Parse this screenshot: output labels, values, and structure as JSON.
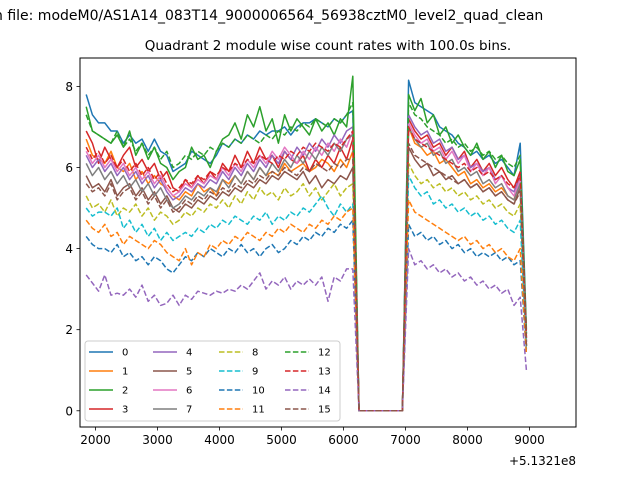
{
  "figure": {
    "suptitle": "n file: modeM0/AS1A14_083T14_9000006564_56938cztM0_level2_quad_clean"
  },
  "chart_data": {
    "type": "line",
    "title": "Quadrant 2 module wise count rates with 100.0s bins.",
    "xlabel": "",
    "ylabel": "",
    "x_offset_label": "+5.1321e8",
    "xlim": [
      1750,
      9750
    ],
    "ylim": [
      -0.4,
      8.7
    ],
    "xticks": [
      2000,
      3000,
      4000,
      5000,
      6000,
      7000,
      8000,
      9000
    ],
    "yticks": [
      0,
      2,
      4,
      6,
      8
    ],
    "grid": false,
    "legend_position": "lower-left",
    "legend_columns": 4,
    "x_start": 1850,
    "x_step": 100,
    "series": [
      {
        "name": "0",
        "color": "#1f77b4",
        "style": "solid",
        "values": [
          7.8,
          7.3,
          7.1,
          7.1,
          6.9,
          6.9,
          6.6,
          6.8,
          6.6,
          6.7,
          6.4,
          6.7,
          6.4,
          6.3,
          5.9,
          6.0,
          6.1,
          6.4,
          6.3,
          6.2,
          6.1,
          6.3,
          6.6,
          6.5,
          6.7,
          6.6,
          6.8,
          6.7,
          6.9,
          6.8,
          6.9,
          6.9,
          7.0,
          6.8,
          7.0,
          7.1,
          7.1,
          7.2,
          7.1,
          7.0,
          7.2,
          7.1,
          7.3,
          7.4,
          0,
          0,
          0,
          0,
          0,
          0,
          0,
          0,
          8.15,
          7.6,
          7.5,
          7.4,
          7.3,
          7.0,
          6.9,
          6.8,
          6.6,
          6.5,
          6.3,
          6.4,
          6.2,
          6.3,
          6.1,
          6.2,
          6.0,
          5.8,
          6.6,
          2.0
        ]
      },
      {
        "name": "1",
        "color": "#ff7f0e",
        "style": "solid",
        "values": [
          6.7,
          6.3,
          6.2,
          6.1,
          6.4,
          6.0,
          5.9,
          6.1,
          5.7,
          5.9,
          5.6,
          5.8,
          5.6,
          5.5,
          5.3,
          5.2,
          5.4,
          5.3,
          5.6,
          5.4,
          5.5,
          5.3,
          5.7,
          5.6,
          5.8,
          5.6,
          5.9,
          5.7,
          6.0,
          5.8,
          5.9,
          5.8,
          6.1,
          5.9,
          6.0,
          6.1,
          5.9,
          6.0,
          6.2,
          6.1,
          5.9,
          6.2,
          6.0,
          6.4,
          0,
          0,
          0,
          0,
          0,
          0,
          0,
          0,
          7.0,
          6.6,
          6.5,
          6.3,
          6.4,
          6.1,
          6.2,
          6.0,
          5.8,
          5.9,
          5.6,
          5.7,
          5.5,
          5.6,
          5.4,
          5.5,
          5.3,
          5.2,
          5.8,
          1.6
        ]
      },
      {
        "name": "2",
        "color": "#2ca02c",
        "style": "solid",
        "values": [
          7.5,
          6.9,
          6.8,
          6.7,
          6.6,
          6.8,
          6.5,
          6.9,
          6.3,
          6.6,
          6.2,
          6.5,
          6.1,
          6.0,
          5.7,
          5.9,
          6.0,
          6.5,
          6.2,
          6.3,
          6.0,
          6.4,
          6.7,
          6.8,
          7.1,
          6.7,
          7.3,
          7.0,
          7.5,
          6.9,
          7.2,
          6.6,
          7.3,
          6.9,
          7.2,
          7.0,
          6.8,
          7.2,
          6.9,
          7.1,
          6.8,
          7.2,
          7.0,
          8.25,
          0,
          0,
          0,
          0,
          0,
          0,
          0,
          0,
          7.8,
          7.4,
          7.7,
          7.1,
          7.3,
          6.8,
          7.0,
          6.6,
          6.8,
          6.5,
          6.3,
          6.6,
          6.2,
          6.4,
          6.0,
          6.3,
          5.9,
          5.8,
          6.2,
          1.9
        ]
      },
      {
        "name": "3",
        "color": "#d62728",
        "style": "solid",
        "values": [
          6.9,
          6.6,
          6.1,
          6.5,
          6.2,
          6.0,
          6.3,
          6.5,
          6.0,
          6.2,
          5.9,
          6.1,
          5.7,
          5.9,
          5.5,
          5.4,
          5.7,
          5.5,
          5.8,
          5.6,
          5.9,
          5.7,
          6.1,
          5.9,
          6.3,
          6.0,
          6.4,
          6.1,
          6.5,
          6.2,
          6.3,
          6.0,
          6.4,
          6.2,
          6.1,
          6.3,
          5.9,
          6.2,
          6.0,
          6.3,
          6.1,
          6.5,
          6.2,
          6.7,
          0,
          0,
          0,
          0,
          0,
          0,
          0,
          0,
          7.2,
          6.9,
          6.7,
          6.8,
          6.5,
          6.6,
          6.3,
          6.5,
          6.2,
          6.4,
          6.0,
          6.2,
          5.9,
          6.1,
          5.8,
          6.0,
          5.7,
          5.5,
          5.9,
          1.8
        ]
      },
      {
        "name": "4",
        "color": "#9467bd",
        "style": "solid",
        "values": [
          6.3,
          6.0,
          6.2,
          5.9,
          6.1,
          5.8,
          6.0,
          5.7,
          5.9,
          5.6,
          5.8,
          5.5,
          5.7,
          5.4,
          5.2,
          5.3,
          5.5,
          5.4,
          5.6,
          5.5,
          5.7,
          5.6,
          5.9,
          5.7,
          6.0,
          5.8,
          6.1,
          5.9,
          6.2,
          6.0,
          6.3,
          6.1,
          6.4,
          6.2,
          6.5,
          6.3,
          6.6,
          6.4,
          6.7,
          6.5,
          6.8,
          6.6,
          6.9,
          7.0,
          0,
          0,
          0,
          0,
          0,
          0,
          0,
          0,
          7.3,
          7.0,
          6.8,
          6.9,
          6.6,
          6.7,
          6.4,
          6.5,
          6.2,
          6.3,
          6.0,
          6.1,
          5.9,
          6.0,
          5.7,
          5.8,
          5.5,
          5.4,
          5.8,
          1.7
        ]
      },
      {
        "name": "5",
        "color": "#8c564b",
        "style": "solid",
        "values": [
          5.8,
          5.5,
          5.6,
          5.4,
          5.7,
          5.3,
          5.5,
          5.6,
          5.3,
          5.5,
          5.2,
          5.4,
          5.1,
          5.3,
          5.0,
          4.9,
          5.1,
          5.0,
          5.2,
          5.1,
          5.3,
          5.2,
          5.4,
          5.3,
          5.5,
          5.4,
          5.6,
          5.5,
          5.7,
          5.6,
          5.8,
          5.7,
          5.9,
          5.8,
          5.7,
          5.9,
          5.6,
          5.8,
          5.5,
          5.7,
          5.6,
          5.8,
          5.7,
          6.0,
          0,
          0,
          0,
          0,
          0,
          0,
          0,
          0,
          6.5,
          6.2,
          6.0,
          6.1,
          5.8,
          5.9,
          5.7,
          5.8,
          5.6,
          5.7,
          5.5,
          5.6,
          5.4,
          5.5,
          5.3,
          5.4,
          5.2,
          5.1,
          5.5,
          1.6
        ]
      },
      {
        "name": "6",
        "color": "#e377c2",
        "style": "solid",
        "values": [
          6.4,
          6.1,
          6.3,
          6.0,
          6.2,
          5.9,
          6.1,
          5.8,
          6.0,
          5.7,
          5.9,
          5.6,
          5.8,
          5.5,
          5.3,
          5.4,
          5.6,
          5.5,
          5.7,
          5.6,
          5.8,
          5.7,
          6.0,
          5.8,
          6.1,
          5.9,
          6.2,
          6.0,
          6.3,
          6.1,
          6.4,
          6.2,
          6.5,
          6.3,
          6.1,
          6.4,
          6.2,
          6.5,
          6.3,
          6.6,
          6.4,
          6.7,
          6.5,
          6.9,
          0,
          0,
          0,
          0,
          0,
          0,
          0,
          0,
          7.1,
          6.8,
          6.6,
          6.7,
          6.4,
          6.5,
          6.2,
          6.4,
          6.1,
          6.3,
          5.9,
          6.1,
          5.8,
          6.0,
          5.6,
          5.8,
          5.5,
          5.3,
          5.7,
          1.7
        ]
      },
      {
        "name": "7",
        "color": "#7f7f7f",
        "style": "solid",
        "values": [
          6.1,
          5.8,
          6.0,
          5.7,
          5.9,
          5.6,
          5.8,
          5.5,
          5.7,
          5.4,
          5.6,
          5.3,
          5.5,
          5.2,
          5.0,
          5.1,
          5.3,
          5.2,
          5.4,
          5.3,
          5.5,
          5.4,
          5.7,
          5.5,
          5.8,
          5.6,
          5.9,
          5.7,
          6.0,
          5.8,
          6.1,
          5.9,
          6.2,
          6.0,
          6.3,
          6.1,
          6.4,
          6.2,
          6.5,
          6.3,
          6.6,
          6.4,
          6.7,
          6.8,
          0,
          0,
          0,
          0,
          0,
          0,
          0,
          0,
          7.0,
          6.7,
          6.5,
          6.6,
          6.3,
          6.4,
          6.1,
          6.2,
          5.9,
          6.0,
          5.8,
          5.9,
          5.6,
          5.7,
          5.5,
          5.6,
          5.3,
          5.2,
          5.6,
          1.7
        ]
      },
      {
        "name": "8",
        "color": "#bcbd22",
        "style": "dashed",
        "values": [
          5.3,
          5.0,
          5.1,
          4.9,
          5.2,
          4.8,
          5.0,
          4.9,
          5.1,
          4.8,
          5.0,
          4.7,
          4.9,
          4.8,
          4.6,
          4.7,
          4.9,
          4.8,
          5.0,
          4.9,
          5.1,
          5.0,
          5.2,
          5.0,
          5.3,
          5.1,
          5.4,
          5.2,
          5.5,
          5.3,
          5.4,
          5.2,
          5.5,
          5.3,
          5.4,
          5.6,
          5.3,
          5.5,
          5.2,
          5.4,
          5.6,
          5.3,
          5.5,
          5.6,
          0,
          0,
          0,
          0,
          0,
          0,
          0,
          0,
          6.1,
          5.8,
          5.6,
          5.7,
          5.5,
          5.6,
          5.4,
          5.5,
          5.3,
          5.4,
          5.2,
          5.3,
          5.1,
          5.2,
          5.0,
          5.1,
          4.9,
          4.8,
          5.1,
          1.6
        ]
      },
      {
        "name": "9",
        "color": "#17becf",
        "style": "dashed",
        "values": [
          5.0,
          4.8,
          4.9,
          4.9,
          4.8,
          5.0,
          4.5,
          4.7,
          4.4,
          4.6,
          4.3,
          4.5,
          4.2,
          4.4,
          4.2,
          4.3,
          4.4,
          4.3,
          4.5,
          4.4,
          4.6,
          4.5,
          4.7,
          4.6,
          4.8,
          4.7,
          4.6,
          4.8,
          4.7,
          4.9,
          4.6,
          4.8,
          4.7,
          4.9,
          4.8,
          5.0,
          4.9,
          5.1,
          5.3,
          5.0,
          4.8,
          5.1,
          4.9,
          5.1,
          0,
          0,
          0,
          0,
          0,
          0,
          0,
          0,
          5.8,
          5.5,
          5.3,
          5.4,
          5.1,
          5.2,
          5.0,
          5.1,
          4.9,
          5.0,
          4.8,
          4.9,
          4.7,
          4.8,
          4.6,
          4.7,
          4.5,
          4.4,
          4.7,
          1.5
        ]
      },
      {
        "name": "10",
        "color": "#1f77b4",
        "style": "dashed",
        "values": [
          4.3,
          4.1,
          4.0,
          4.0,
          3.9,
          4.1,
          3.8,
          3.9,
          3.7,
          3.8,
          3.6,
          3.8,
          3.7,
          3.5,
          3.4,
          3.6,
          3.8,
          3.7,
          3.9,
          3.8,
          4.0,
          3.9,
          3.8,
          4.0,
          3.9,
          4.1,
          3.9,
          4.0,
          3.8,
          4.0,
          4.1,
          3.9,
          4.0,
          4.2,
          4.1,
          4.3,
          4.2,
          4.4,
          4.3,
          4.5,
          4.4,
          4.6,
          4.5,
          4.7,
          0,
          0,
          0,
          0,
          0,
          0,
          0,
          0,
          4.6,
          4.3,
          4.4,
          4.2,
          4.3,
          4.1,
          4.2,
          4.0,
          4.1,
          3.9,
          4.0,
          3.8,
          3.9,
          3.8,
          3.9,
          3.7,
          3.8,
          3.6,
          3.7,
          1.4
        ]
      },
      {
        "name": "11",
        "color": "#ff7f0e",
        "style": "dashed",
        "values": [
          4.7,
          4.5,
          4.4,
          4.6,
          4.3,
          4.4,
          4.1,
          4.3,
          4.2,
          4.1,
          4.0,
          4.2,
          4.1,
          3.9,
          3.8,
          3.7,
          4.0,
          3.6,
          3.9,
          3.8,
          4.1,
          4.0,
          4.2,
          4.1,
          4.3,
          4.2,
          4.4,
          4.3,
          4.2,
          4.4,
          4.3,
          4.5,
          4.4,
          4.6,
          4.5,
          4.4,
          4.6,
          4.5,
          4.7,
          4.6,
          4.8,
          4.7,
          4.9,
          5.0,
          0,
          0,
          0,
          0,
          0,
          0,
          0,
          0,
          5.2,
          4.9,
          4.8,
          4.7,
          4.6,
          4.5,
          4.4,
          4.3,
          4.2,
          4.3,
          4.1,
          4.2,
          4.0,
          4.1,
          3.9,
          4.0,
          3.8,
          3.7,
          4.0,
          1.4
        ]
      },
      {
        "name": "12",
        "color": "#2ca02c",
        "style": "dashed",
        "values": [
          7.3,
          6.9,
          6.8,
          6.7,
          6.6,
          6.9,
          6.5,
          6.7,
          6.4,
          6.6,
          6.3,
          6.5,
          6.2,
          6.4,
          6.0,
          6.1,
          6.3,
          6.2,
          6.4,
          6.3,
          6.5,
          6.4,
          6.6,
          6.5,
          6.7,
          6.6,
          6.8,
          6.7,
          6.6,
          6.8,
          6.7,
          6.9,
          6.8,
          7.0,
          6.9,
          7.1,
          7.0,
          7.2,
          7.1,
          7.0,
          7.2,
          7.1,
          7.3,
          7.6,
          0,
          0,
          0,
          0,
          0,
          0,
          0,
          0,
          7.6,
          7.3,
          7.2,
          7.0,
          6.9,
          6.8,
          6.6,
          6.7,
          6.5,
          6.6,
          6.4,
          6.5,
          6.3,
          6.4,
          6.2,
          6.3,
          6.1,
          6.0,
          6.3,
          1.9
        ]
      },
      {
        "name": "13",
        "color": "#d62728",
        "style": "dashed",
        "values": [
          6.5,
          6.2,
          6.4,
          6.1,
          6.3,
          6.0,
          6.2,
          5.9,
          6.1,
          5.8,
          6.0,
          5.7,
          5.9,
          5.6,
          5.4,
          5.5,
          5.7,
          5.6,
          5.8,
          5.7,
          5.9,
          5.8,
          6.0,
          5.9,
          6.1,
          6.0,
          6.2,
          6.1,
          6.3,
          6.2,
          6.1,
          6.3,
          6.2,
          6.4,
          6.3,
          6.5,
          6.4,
          6.6,
          6.5,
          6.4,
          6.6,
          6.5,
          6.7,
          6.9,
          0,
          0,
          0,
          0,
          0,
          0,
          0,
          0,
          7.0,
          6.7,
          6.6,
          6.5,
          6.4,
          6.3,
          6.2,
          6.1,
          6.0,
          6.1,
          5.9,
          6.0,
          5.8,
          5.9,
          5.7,
          5.8,
          5.6,
          5.5,
          5.8,
          1.8
        ]
      },
      {
        "name": "14",
        "color": "#9467bd",
        "style": "dashed",
        "values": [
          3.35,
          3.15,
          2.95,
          3.35,
          2.85,
          2.9,
          2.85,
          3.0,
          2.8,
          3.1,
          2.7,
          2.85,
          2.6,
          2.65,
          2.85,
          2.6,
          2.85,
          2.75,
          2.95,
          2.9,
          2.85,
          2.95,
          2.9,
          3.0,
          2.95,
          3.1,
          3.0,
          3.2,
          3.4,
          3.0,
          3.2,
          3.1,
          3.3,
          3.0,
          3.2,
          3.1,
          3.25,
          3.1,
          3.3,
          2.7,
          3.3,
          3.2,
          3.5,
          3.5,
          0,
          0,
          0,
          0,
          0,
          0,
          0,
          0,
          4.0,
          3.6,
          3.7,
          3.5,
          3.6,
          3.4,
          3.5,
          3.3,
          3.4,
          3.2,
          3.3,
          3.1,
          3.2,
          3.0,
          3.1,
          2.9,
          3.0,
          2.6,
          2.8,
          1.0
        ]
      },
      {
        "name": "15",
        "color": "#8c564b",
        "style": "dashed",
        "values": [
          5.6,
          5.4,
          5.5,
          5.3,
          5.6,
          5.2,
          5.4,
          5.5,
          5.2,
          5.4,
          5.1,
          5.3,
          5.0,
          5.2,
          4.9,
          5.0,
          5.2,
          5.1,
          5.3,
          5.2,
          5.4,
          5.3,
          5.5,
          5.4,
          5.6,
          5.5,
          5.7,
          5.6,
          5.8,
          5.7,
          5.9,
          5.8,
          6.0,
          5.9,
          5.8,
          6.0,
          5.9,
          6.1,
          6.0,
          5.9,
          6.1,
          6.0,
          6.2,
          6.2,
          0,
          0,
          0,
          0,
          0,
          0,
          0,
          0,
          6.6,
          6.3,
          6.2,
          6.1,
          6.0,
          5.9,
          5.8,
          5.7,
          5.6,
          5.7,
          5.5,
          5.6,
          5.4,
          5.5,
          5.3,
          5.4,
          5.2,
          5.1,
          5.4,
          1.6
        ]
      }
    ]
  }
}
